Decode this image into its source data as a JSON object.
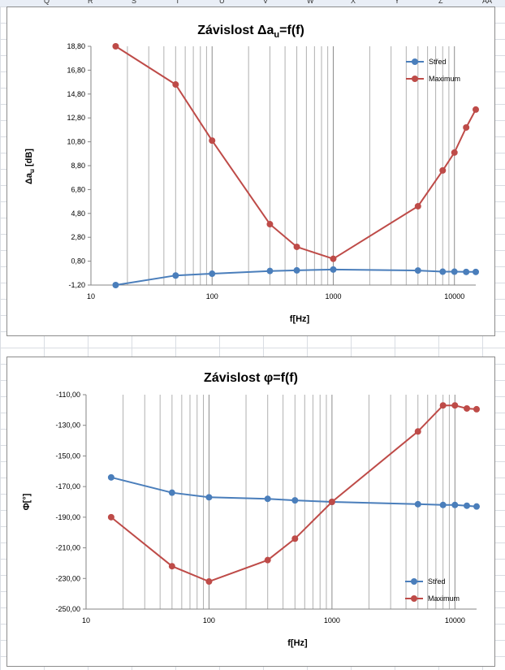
{
  "sheet": {
    "columns": [
      "Q",
      "R",
      "S",
      "T",
      "U",
      "V",
      "W",
      "X",
      "Y",
      "Z",
      "AA"
    ]
  },
  "chart_data": [
    {
      "type": "line",
      "title_main": "Závislost Δa",
      "title_sub": "u",
      "title_tail": "=f(f)",
      "xlabel": "f[Hz]",
      "ylabel_main": "Δa",
      "ylabel_sub": "u",
      "ylabel_tail": " [dB]",
      "x_scale": "log",
      "xlim": [
        10,
        15000
      ],
      "ylim": [
        -1.2,
        18.8
      ],
      "y_ticks": [
        "18,80",
        "16,80",
        "14,80",
        "12,80",
        "10,80",
        "8,80",
        "6,80",
        "4,80",
        "2,80",
        "0,80",
        "-1,20"
      ],
      "x_ticks": [
        "10",
        "100",
        "1000",
        "10000"
      ],
      "grid": "vertical log gridlines",
      "legend_position": "top-right",
      "x": [
        16,
        50,
        100,
        300,
        500,
        1000,
        5000,
        8000,
        10000,
        12500,
        15000
      ],
      "series": [
        {
          "name": "Střed",
          "color": "#4a7ebb",
          "values": [
            -1.2,
            -0.4,
            -0.25,
            -0.02,
            0.03,
            0.1,
            0.02,
            -0.08,
            -0.08,
            -0.1,
            -0.1
          ]
        },
        {
          "name": "Maximum",
          "color": "#be4b48",
          "values": [
            18.8,
            15.6,
            10.9,
            3.9,
            2.0,
            1.0,
            5.4,
            8.4,
            9.9,
            12.0,
            13.5
          ]
        }
      ]
    },
    {
      "type": "line",
      "title_main": "Závislost φ=f(f)",
      "xlabel": "f[Hz]",
      "ylabel": "Φ[°]",
      "x_scale": "log",
      "xlim": [
        10,
        15000
      ],
      "ylim": [
        -250,
        -110
      ],
      "y_ticks": [
        "-110,00",
        "-130,00",
        "-150,00",
        "-170,00",
        "-190,00",
        "-210,00",
        "-230,00",
        "-250,00"
      ],
      "x_ticks": [
        "10",
        "100",
        "1000",
        "10000"
      ],
      "grid": "vertical log gridlines",
      "legend_position": "bottom-right",
      "x": [
        16,
        50,
        100,
        300,
        500,
        1000,
        5000,
        8000,
        10000,
        12500,
        15000
      ],
      "series": [
        {
          "name": "Střed",
          "color": "#4a7ebb",
          "values": [
            -164,
            -174,
            -177,
            -178,
            -179,
            -180,
            -181.5,
            -182,
            -182,
            -182.5,
            -183
          ]
        },
        {
          "name": "Maximum",
          "color": "#be4b48",
          "values": [
            -190,
            -222,
            -232,
            -218,
            -204,
            -180,
            -134,
            -117,
            -117,
            -119,
            -119.5
          ]
        }
      ]
    }
  ]
}
